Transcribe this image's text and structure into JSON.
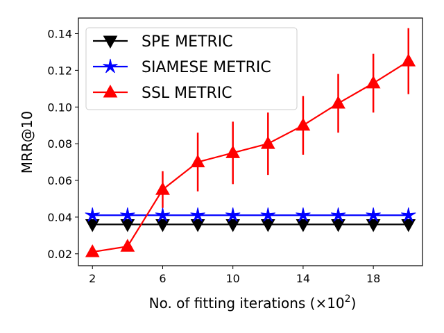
{
  "chart_data": {
    "type": "line",
    "title": "",
    "xlabel": "No. of fitting iterations (×10",
    "xlabel_superscript": "2",
    "xlabel_close": ")",
    "ylabel": "MRR@10",
    "xlim": [
      1.2,
      20.8
    ],
    "ylim": [
      0.0135,
      0.1485
    ],
    "xticks": [
      2,
      6,
      10,
      14,
      18
    ],
    "yticks": [
      0.02,
      0.04,
      0.06,
      0.08,
      0.1,
      0.12,
      0.14
    ],
    "ytick_labels": [
      "0.02",
      "0.04",
      "0.06",
      "0.08",
      "0.10",
      "0.12",
      "0.14"
    ],
    "x": [
      2,
      4,
      6,
      8,
      10,
      12,
      14,
      16,
      18,
      20
    ],
    "legend_position": "top-left",
    "series": [
      {
        "name": "SPE METRIC",
        "color": "#000000",
        "marker": "triangle-down",
        "values": [
          0.036,
          0.036,
          0.036,
          0.036,
          0.036,
          0.036,
          0.036,
          0.036,
          0.036,
          0.036
        ],
        "errors": []
      },
      {
        "name": "SIAMESE METRIC",
        "color": "#0000ff",
        "marker": "star",
        "values": [
          0.041,
          0.041,
          0.041,
          0.041,
          0.041,
          0.041,
          0.041,
          0.041,
          0.041,
          0.041
        ],
        "errors": []
      },
      {
        "name": "SSL METRIC",
        "color": "#ff0000",
        "marker": "triangle-up",
        "values": [
          0.021,
          0.024,
          0.055,
          0.07,
          0.075,
          0.08,
          0.09,
          0.102,
          0.113,
          0.125
        ],
        "errors": [
          0,
          0,
          0.01,
          0.016,
          0.017,
          0.017,
          0.016,
          0.016,
          0.016,
          0.018
        ]
      }
    ]
  }
}
